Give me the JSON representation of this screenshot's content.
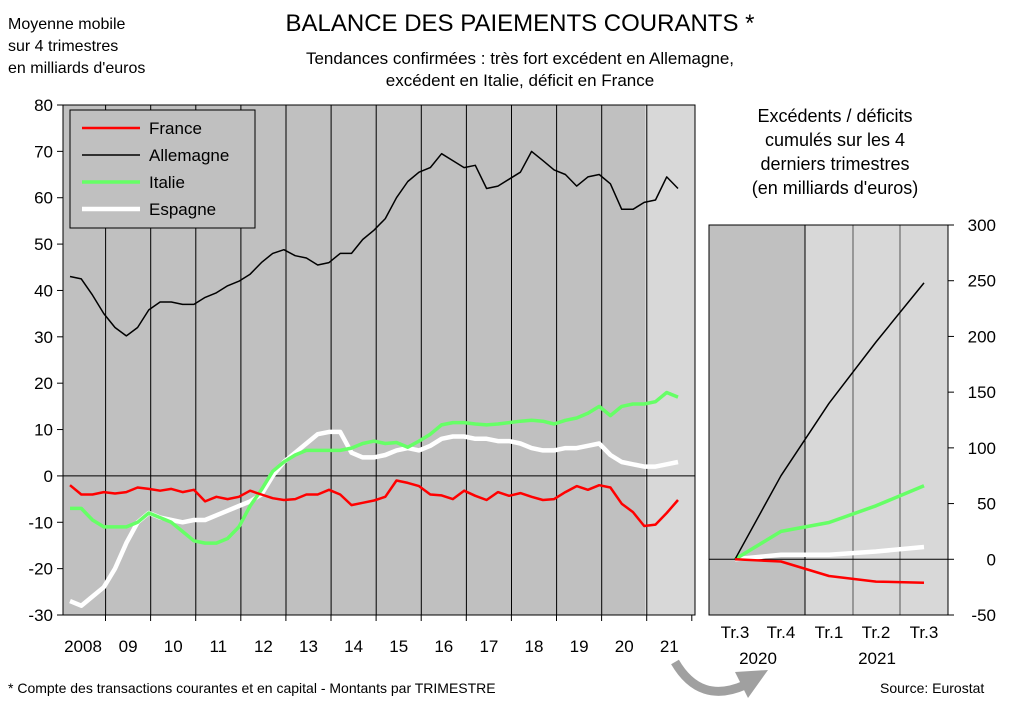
{
  "header": {
    "title": "BALANCE DES PAIEMENTS COURANTS *",
    "subtitle_line1": "Tendances confirmées : très fort excédent en Allemagne,",
    "subtitle_line2": "excédent en Italie, déficit en France",
    "unit_line1": "Moyenne mobile",
    "unit_line2": "sur 4 trimestres",
    "unit_line3": "en milliards d'euros"
  },
  "right_panel": {
    "title_line1": "Excédents / déficits",
    "title_line2": "cumulés sur les 4",
    "title_line3": "derniers trimestres",
    "title_line4": "(en milliards d'euros)"
  },
  "footer": {
    "footnote": "* Compte des transactions courantes et en capital - Montants par TRIMESTRE",
    "source": "Source: Eurostat"
  },
  "colors": {
    "France": "#ff0000",
    "Allemagne": "#000000",
    "Italie": "#66ff66",
    "Espagne": "#ffffff",
    "plot_bg": "#c0c0c0",
    "plot_bg_light": "#d8d8d8"
  },
  "chart_data": [
    {
      "type": "line",
      "ylim": [
        -30,
        80
      ],
      "yticks": [
        80,
        70,
        60,
        50,
        40,
        30,
        20,
        10,
        0,
        -10,
        -20,
        -30
      ],
      "x_tick_labels": [
        "2008",
        "09",
        "10",
        "11",
        "12",
        "13",
        "14",
        "15",
        "16",
        "17",
        "18",
        "19",
        "20",
        "21"
      ],
      "legend_placement": "top-left",
      "grid": false,
      "series": [
        {
          "name": "France",
          "values": [
            -2,
            -4,
            -4,
            -3.5,
            -3.8,
            -3.5,
            -2.5,
            -2.8,
            -3.2,
            -2.8,
            -3.5,
            -3,
            -5.5,
            -4.5,
            -5,
            -4.5,
            -3.2,
            -4,
            -4.8,
            -5.2,
            -5,
            -4,
            -4,
            -3,
            -4,
            -6.3,
            -5.8,
            -5.3,
            -4.5,
            -1,
            -1.5,
            -2.2,
            -4,
            -4.2,
            -5,
            -3.2,
            -4.3,
            -5.2,
            -3.5,
            -4.3,
            -3.7,
            -4.5,
            -5.2,
            -5,
            -3.5,
            -2.2,
            -3,
            -2,
            -2.5,
            -6,
            -7.8,
            -10.8,
            -10.5,
            -8,
            -5.2
          ]
        },
        {
          "name": "Allemagne",
          "values": [
            43,
            42.5,
            39,
            35,
            32,
            30.2,
            32,
            35.8,
            37.5,
            37.5,
            37,
            37,
            38.5,
            39.5,
            41,
            42,
            43.5,
            46,
            48,
            48.8,
            47.5,
            47,
            45.5,
            46,
            48,
            48,
            51,
            53,
            55.5,
            60,
            63.5,
            65.5,
            66.5,
            69.5,
            68,
            66.5,
            67,
            62,
            62.5,
            64,
            65.5,
            70,
            68,
            66,
            65,
            62.5,
            64.5,
            65,
            63,
            57.5,
            57.5,
            59,
            59.5,
            64.5,
            62
          ]
        },
        {
          "name": "Italie",
          "values": [
            -7,
            -7,
            -9.5,
            -11,
            -11,
            -11,
            -10,
            -8,
            -9,
            -10,
            -12,
            -14,
            -14.5,
            -14.5,
            -13.5,
            -11,
            -6.5,
            -3,
            1,
            3,
            4.5,
            5.5,
            5.5,
            5.5,
            5.5,
            6,
            7,
            7.5,
            7,
            7.2,
            6.2,
            7.5,
            9,
            11,
            11.5,
            11.5,
            11.2,
            11,
            11.2,
            11.5,
            11.8,
            12,
            11.8,
            11.2,
            12,
            12.5,
            13.5,
            15,
            13,
            15,
            15.5,
            15.5,
            16,
            18,
            17
          ]
        },
        {
          "name": "Espagne",
          "values": [
            -27,
            -28,
            -26,
            -24,
            -20,
            -14.5,
            -10,
            -8,
            -9,
            -9.5,
            -10,
            -9.5,
            -9.5,
            -8.5,
            -7.5,
            -6.5,
            -5.5,
            -4,
            0,
            3,
            5,
            7,
            9,
            9.5,
            9.5,
            5,
            4,
            4,
            4.5,
            5.5,
            6,
            5.5,
            6.5,
            8,
            8.5,
            8.5,
            8,
            8,
            7.5,
            7.5,
            7,
            6,
            5.5,
            5.5,
            6,
            6,
            6.5,
            7,
            4.5,
            3,
            2.5,
            2,
            2,
            2.5,
            3
          ]
        }
      ]
    },
    {
      "type": "line",
      "ylim": [
        -50,
        300
      ],
      "yticks": [
        300,
        250,
        200,
        150,
        100,
        50,
        0,
        -50
      ],
      "categories": [
        "Tr.3",
        "Tr.4",
        "Tr.1",
        "Tr.2",
        "Tr.3"
      ],
      "year_labels": [
        "2020",
        "2021"
      ],
      "series": [
        {
          "name": "France",
          "values": [
            0,
            -2,
            -15,
            -20,
            -21
          ]
        },
        {
          "name": "Allemagne",
          "values": [
            0,
            75,
            140,
            195,
            248
          ]
        },
        {
          "name": "Italie",
          "values": [
            0,
            25,
            33,
            48,
            66
          ]
        },
        {
          "name": "Espagne",
          "values": [
            0,
            4,
            4,
            7,
            11
          ]
        }
      ]
    }
  ]
}
